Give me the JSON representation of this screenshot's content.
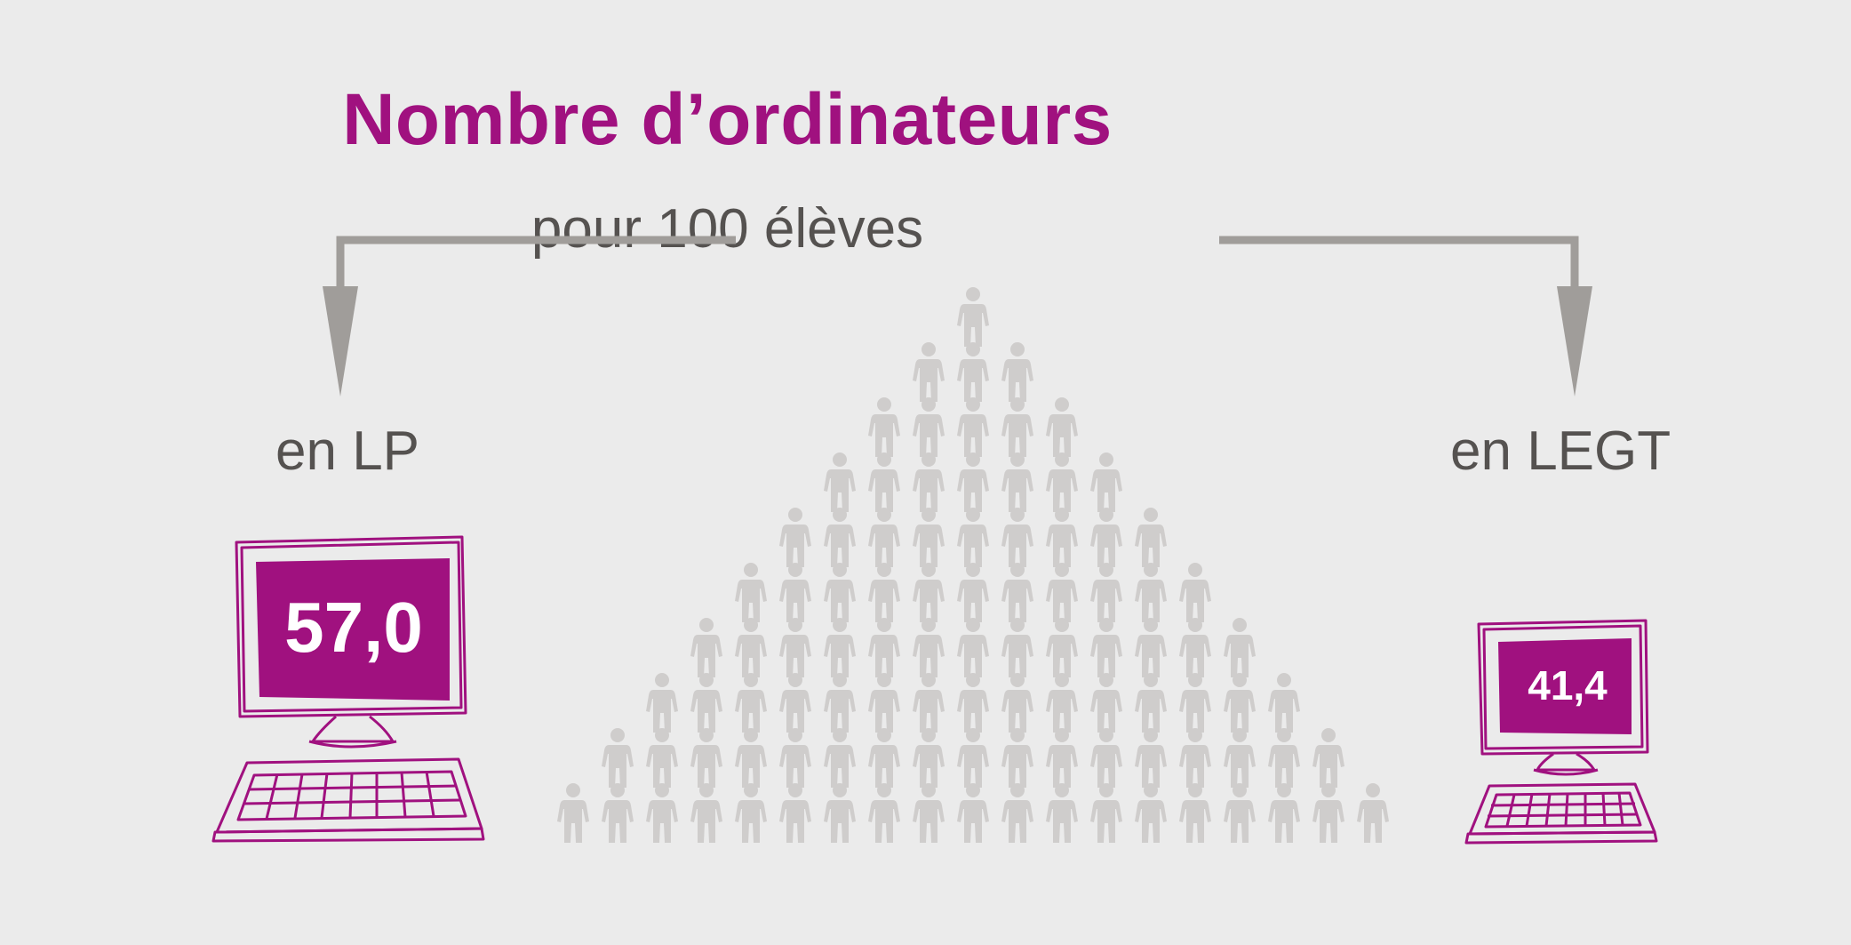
{
  "title": "Nombre d’ordinateurs",
  "subtitle": "pour 100 élèves",
  "groups": [
    {
      "label": "en LP",
      "value": "57,0",
      "icon": "desktop-computer-icon"
    },
    {
      "label": "en LEGT",
      "value": "41,4",
      "icon": "desktop-computer-icon"
    }
  ],
  "pictogram": {
    "icon": "person-icon",
    "count": 100,
    "rows": 10
  },
  "colors": {
    "accent": "#a0117f",
    "text": "#555250",
    "arrow": "#a09d9a",
    "people": "#cfcdcc",
    "background": "#ebebeb"
  }
}
